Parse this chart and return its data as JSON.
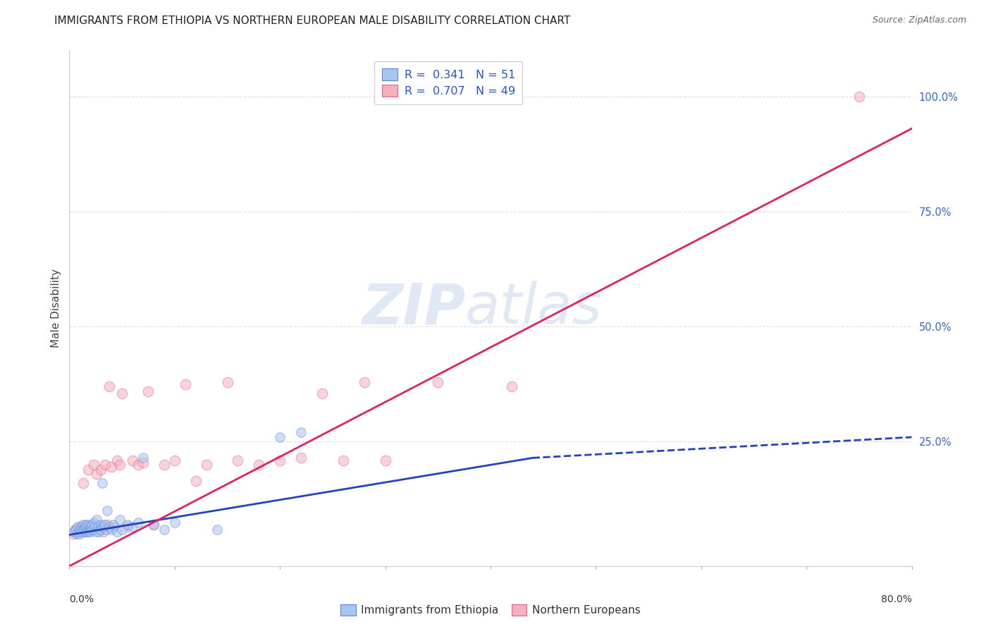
{
  "title": "IMMIGRANTS FROM ETHIOPIA VS NORTHERN EUROPEAN MALE DISABILITY CORRELATION CHART",
  "source": "Source: ZipAtlas.com",
  "ylabel": "Male Disability",
  "right_yticks": [
    "100.0%",
    "75.0%",
    "50.0%",
    "25.0%"
  ],
  "right_ytick_vals": [
    1.0,
    0.75,
    0.5,
    0.25
  ],
  "xlim": [
    0.0,
    0.8
  ],
  "ylim": [
    -0.02,
    1.1
  ],
  "watermark_zip": "ZIP",
  "watermark_atlas": "atlas",
  "ethiopia_color": "#a8c4f0",
  "ethiopia_edge": "#5588dd",
  "northern_color": "#f5b0c0",
  "northern_edge": "#dd6688",
  "trendline_ethiopia_color": "#2244bb",
  "trendline_northern_color": "#dd2266",
  "background_color": "#ffffff",
  "grid_color": "#dddddd",
  "ethiopia_x": [
    0.004,
    0.006,
    0.007,
    0.008,
    0.009,
    0.01,
    0.01,
    0.011,
    0.012,
    0.013,
    0.014,
    0.015,
    0.015,
    0.016,
    0.017,
    0.018,
    0.018,
    0.019,
    0.02,
    0.02,
    0.021,
    0.022,
    0.023,
    0.024,
    0.025,
    0.026,
    0.027,
    0.028,
    0.029,
    0.03,
    0.031,
    0.032,
    0.033,
    0.035,
    0.036,
    0.038,
    0.04,
    0.042,
    0.045,
    0.048,
    0.05,
    0.055,
    0.06,
    0.065,
    0.07,
    0.08,
    0.09,
    0.1,
    0.14,
    0.2,
    0.22
  ],
  "ethiopia_y": [
    0.055,
    0.06,
    0.05,
    0.065,
    0.055,
    0.05,
    0.06,
    0.065,
    0.055,
    0.07,
    0.06,
    0.055,
    0.07,
    0.065,
    0.06,
    0.055,
    0.07,
    0.06,
    0.065,
    0.055,
    0.07,
    0.06,
    0.075,
    0.065,
    0.055,
    0.08,
    0.065,
    0.055,
    0.06,
    0.07,
    0.16,
    0.065,
    0.07,
    0.06,
    0.1,
    0.065,
    0.06,
    0.07,
    0.055,
    0.08,
    0.06,
    0.07,
    0.065,
    0.075,
    0.215,
    0.07,
    0.06,
    0.075,
    0.06,
    0.26,
    0.27
  ],
  "northern_x": [
    0.004,
    0.006,
    0.008,
    0.01,
    0.012,
    0.013,
    0.015,
    0.016,
    0.017,
    0.018,
    0.02,
    0.022,
    0.023,
    0.025,
    0.026,
    0.028,
    0.03,
    0.032,
    0.034,
    0.036,
    0.038,
    0.04,
    0.042,
    0.045,
    0.048,
    0.05,
    0.055,
    0.06,
    0.065,
    0.07,
    0.075,
    0.08,
    0.09,
    0.1,
    0.11,
    0.12,
    0.13,
    0.15,
    0.16,
    0.18,
    0.2,
    0.22,
    0.24,
    0.26,
    0.28,
    0.3,
    0.35,
    0.42,
    0.75
  ],
  "northern_y": [
    0.05,
    0.06,
    0.055,
    0.065,
    0.06,
    0.16,
    0.055,
    0.065,
    0.06,
    0.19,
    0.06,
    0.065,
    0.2,
    0.07,
    0.18,
    0.065,
    0.19,
    0.055,
    0.2,
    0.07,
    0.37,
    0.195,
    0.065,
    0.21,
    0.2,
    0.355,
    0.065,
    0.21,
    0.2,
    0.205,
    0.36,
    0.07,
    0.2,
    0.21,
    0.375,
    0.165,
    0.2,
    0.38,
    0.21,
    0.2,
    0.21,
    0.215,
    0.355,
    0.21,
    0.38,
    0.21,
    0.38,
    0.37,
    1.0
  ],
  "trendline_eth_x0": 0.0,
  "trendline_eth_y0": 0.048,
  "trendline_eth_x1": 0.44,
  "trendline_eth_y1": 0.215,
  "trendline_eth_dash_x0": 0.44,
  "trendline_eth_dash_y0": 0.215,
  "trendline_eth_dash_x1": 0.8,
  "trendline_eth_dash_y1": 0.26,
  "trendline_nor_x0": 0.0,
  "trendline_nor_y0": -0.02,
  "trendline_nor_x1": 0.8,
  "trendline_nor_y1": 0.93
}
